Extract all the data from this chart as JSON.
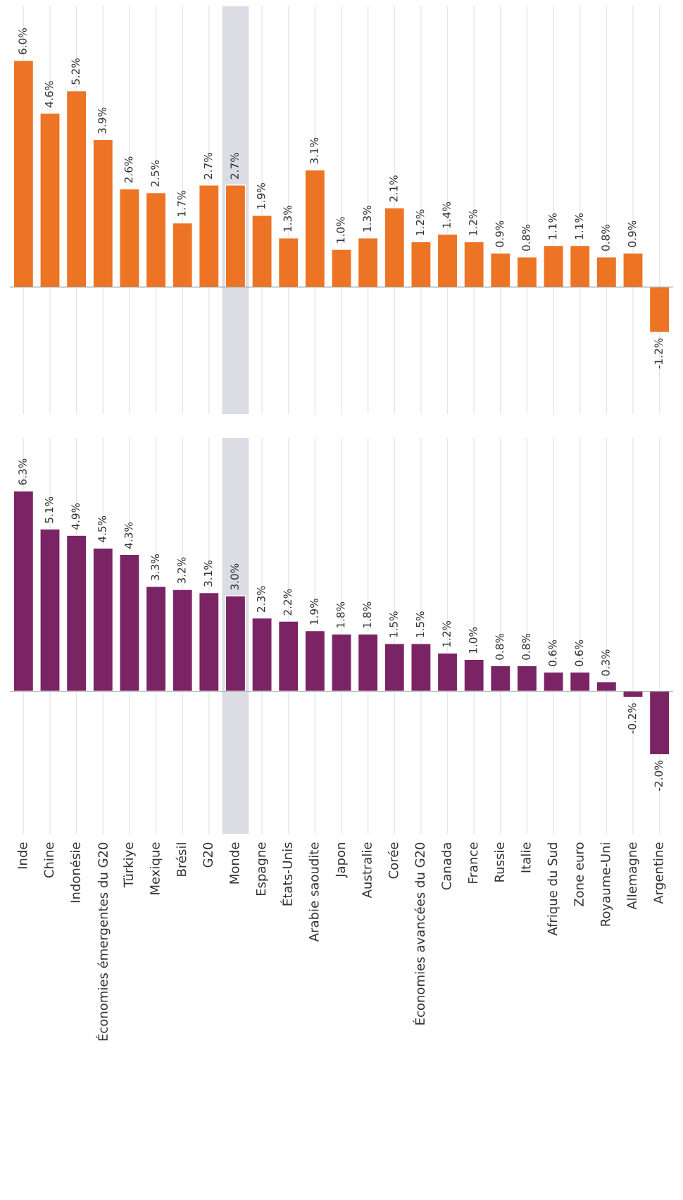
{
  "chart_data": [
    {
      "type": "bar",
      "categories": [
        "Inde",
        "Chine",
        "Indonésie",
        "Économies émergentes du G20",
        "Türkiye",
        "Mexique",
        "Brésil",
        "G20",
        "Monde",
        "Espagne",
        "États-Unis",
        "Arabie saoudite",
        "Japon",
        "Australie",
        "Corée",
        "Économies avancées du G20",
        "Canada",
        "France",
        "Russie",
        "Italie",
        "Afrique du Sud",
        "Zone euro",
        "Royaume-Uni",
        "Allemagne",
        "Argentine"
      ],
      "values": [
        6.0,
        4.6,
        5.2,
        3.9,
        2.6,
        2.5,
        1.7,
        2.7,
        2.7,
        1.9,
        1.3,
        3.1,
        1.0,
        1.3,
        2.1,
        1.2,
        1.4,
        1.2,
        0.9,
        0.8,
        1.1,
        1.1,
        0.8,
        0.9,
        -1.2
      ],
      "value_labels": [
        "6.0%",
        "4.6%",
        "5.2%",
        "3.9%",
        "2.6%",
        "2.5%",
        "1.7%",
        "2.7%",
        "2.7%",
        "1.9%",
        "1.3%",
        "3.1%",
        "1.0%",
        "1.3%",
        "2.1%",
        "1.2%",
        "1.4%",
        "1.2%",
        "0.9%",
        "0.8%",
        "1.1%",
        "1.1%",
        "0.8%",
        "0.9%",
        "-1.2%"
      ],
      "color": "#ec7424",
      "grid": "x",
      "tick_labels": false,
      "bands": [
        {
          "axis": "x",
          "from": "Monde",
          "to": "Monde",
          "color": "#dcdce4"
        }
      ]
    },
    {
      "type": "bar",
      "categories": [
        "Inde",
        "Chine",
        "Indonésie",
        "Économies émergentes du G20",
        "Türkiye",
        "Mexique",
        "Brésil",
        "G20",
        "Monde",
        "Espagne",
        "États-Unis",
        "Arabie saoudite",
        "Japon",
        "Australie",
        "Corée",
        "Économies avancées du G20",
        "Canada",
        "France",
        "Russie",
        "Italie",
        "Afrique du Sud",
        "Zone euro",
        "Royaume-Uni",
        "Allemagne",
        "Argentine"
      ],
      "values": [
        6.3,
        5.1,
        4.9,
        4.5,
        4.3,
        3.3,
        3.2,
        3.1,
        3.0,
        2.3,
        2.2,
        1.9,
        1.8,
        1.8,
        1.5,
        1.5,
        1.2,
        1.0,
        0.8,
        0.8,
        0.6,
        0.6,
        0.3,
        -0.2,
        -2.0
      ],
      "value_labels": [
        "6.3%",
        "5.1%",
        "4.9%",
        "4.5%",
        "4.3%",
        "3.3%",
        "3.2%",
        "3.1%",
        "3.0%",
        "2.3%",
        "2.2%",
        "1.9%",
        "1.8%",
        "1.8%",
        "1.5%",
        "1.5%",
        "1.2%",
        "1.0%",
        "0.8%",
        "0.8%",
        "0.6%",
        "0.6%",
        "0.3%",
        "-0.2%",
        "-2.0%"
      ],
      "color": "#7b2465",
      "grid": "x",
      "tick_labels": "x",
      "bands": [
        {
          "axis": "x",
          "from": "Monde",
          "to": "Monde",
          "color": "#dcdce4"
        }
      ]
    }
  ]
}
